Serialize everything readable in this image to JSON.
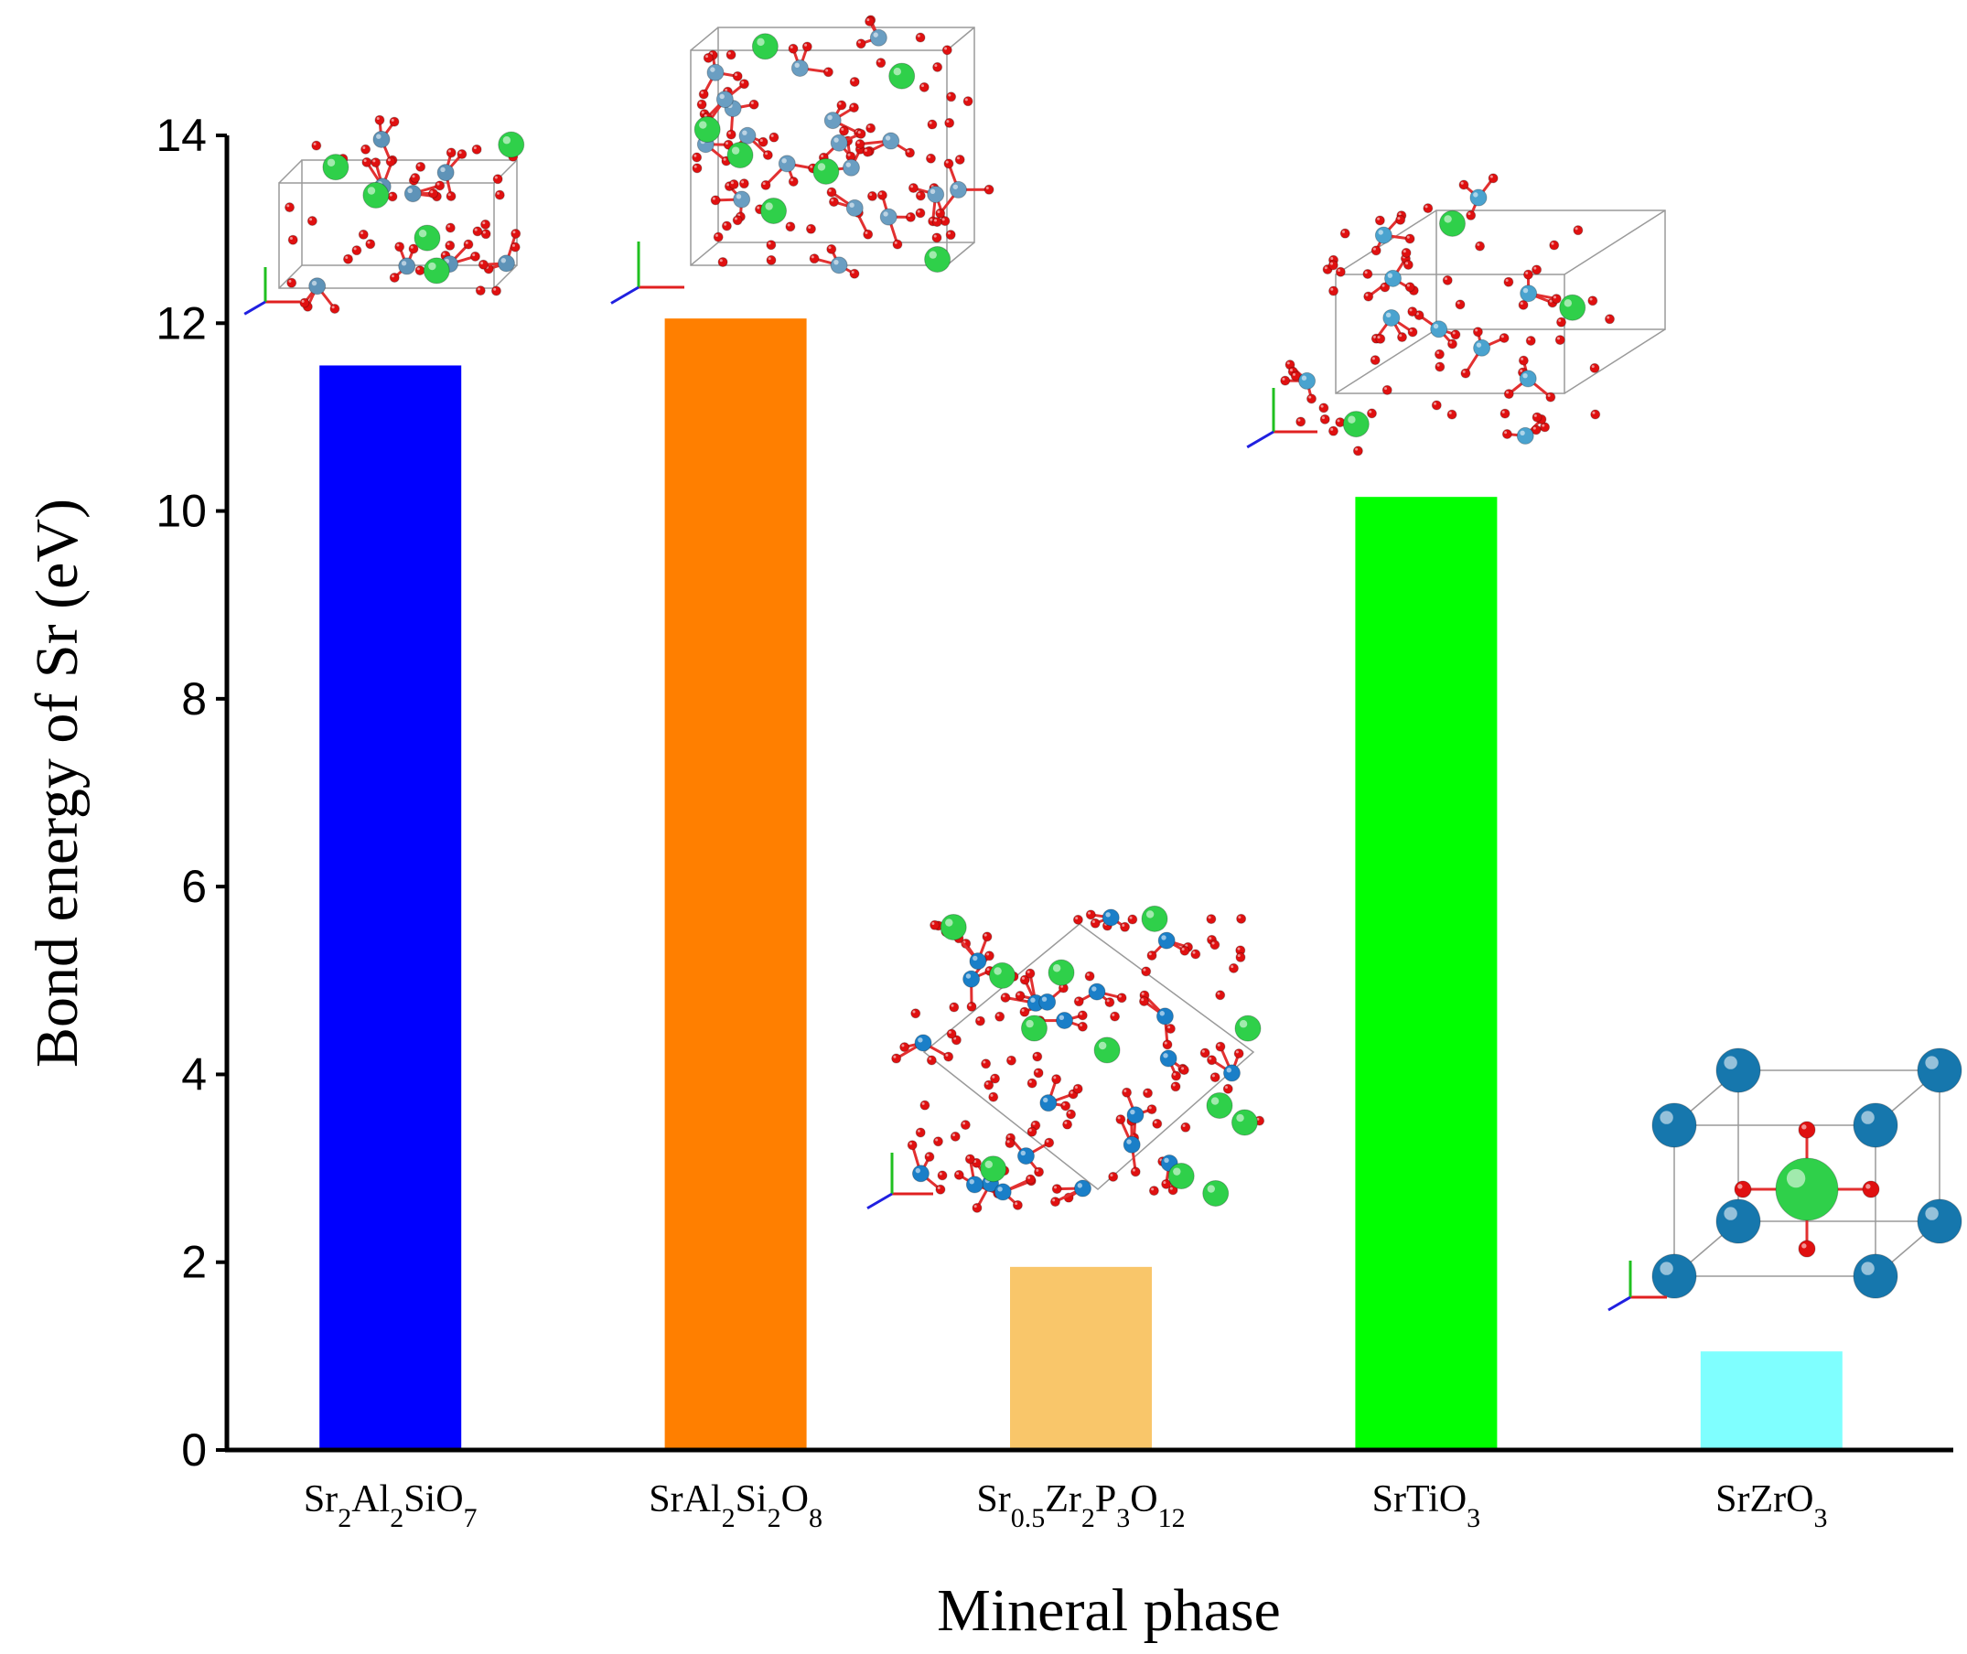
{
  "chart_data": {
    "type": "bar",
    "xlabel": "Mineral phase",
    "ylabel": "Bond energy of Sr (eV)",
    "ylim": [
      0,
      14
    ],
    "yticks": [
      0,
      2,
      4,
      6,
      8,
      10,
      12,
      14
    ],
    "grid": false,
    "categories": [
      {
        "id": "sr2al2sio7",
        "parts": [
          {
            "t": "Sr"
          },
          {
            "t": "2",
            "sub": true
          },
          {
            "t": "Al"
          },
          {
            "t": "2",
            "sub": true
          },
          {
            "t": "SiO"
          },
          {
            "t": "7",
            "sub": true
          }
        ]
      },
      {
        "id": "sral2si2o8",
        "parts": [
          {
            "t": "SrAl"
          },
          {
            "t": "2",
            "sub": true
          },
          {
            "t": "Si"
          },
          {
            "t": "2",
            "sub": true
          },
          {
            "t": "O"
          },
          {
            "t": "8",
            "sub": true
          }
        ]
      },
      {
        "id": "sr05zr2p3o12",
        "parts": [
          {
            "t": "Sr"
          },
          {
            "t": "0.5",
            "sub": true
          },
          {
            "t": "Zr"
          },
          {
            "t": "2",
            "sub": true
          },
          {
            "t": "P"
          },
          {
            "t": "3",
            "sub": true
          },
          {
            "t": "O"
          },
          {
            "t": "12",
            "sub": true
          }
        ]
      },
      {
        "id": "srtio3",
        "parts": [
          {
            "t": "SrTiO"
          },
          {
            "t": "3",
            "sub": true
          }
        ]
      },
      {
        "id": "srzro3",
        "parts": [
          {
            "t": "SrZrO"
          },
          {
            "t": "3",
            "sub": true
          }
        ]
      }
    ],
    "values": [
      11.55,
      12.05,
      1.95,
      10.15,
      1.05
    ],
    "colors": [
      "#0000ff",
      "#ff7f00",
      "#f9c66a",
      "#00ff00",
      "#7fffff"
    ],
    "insets": [
      {
        "kind": "cluster",
        "seed": 1
      },
      {
        "kind": "framework",
        "seed": 2
      },
      {
        "kind": "nasicon",
        "seed": 3
      },
      {
        "kind": "perovskite-octa",
        "seed": 4
      },
      {
        "kind": "perovskite-cube",
        "seed": 5
      }
    ]
  }
}
